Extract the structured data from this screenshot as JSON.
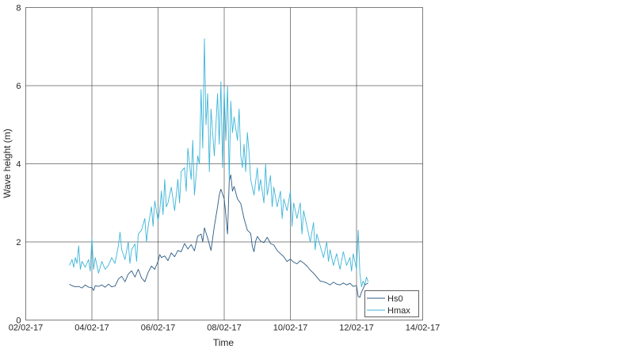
{
  "chart_data": {
    "type": "line",
    "title": "",
    "xlabel": "Time",
    "ylabel": "Wave height (m)",
    "xlim": [
      "02/02-17",
      "14/02-17"
    ],
    "ylim": [
      0,
      8
    ],
    "grid": true,
    "legend_position": "lower right (inside)",
    "x_tick_labels": [
      "02/02-17",
      "04/02-17",
      "06/02-17",
      "08/02-17",
      "10/02-17",
      "12/02-17",
      "14/02-17"
    ],
    "y_tick_labels": [
      "0",
      "2",
      "4",
      "6",
      "8"
    ],
    "x_day_start": 2,
    "x_day_end": 14,
    "series": [
      {
        "name": "Hs0",
        "color": "#2b5b84",
        "points": [
          [
            3.32,
            0.92
          ],
          [
            3.4,
            0.88
          ],
          [
            3.5,
            0.85
          ],
          [
            3.6,
            0.86
          ],
          [
            3.7,
            0.82
          ],
          [
            3.8,
            0.9
          ],
          [
            3.9,
            0.84
          ],
          [
            4.0,
            0.83
          ],
          [
            4.05,
            0.76
          ],
          [
            4.1,
            0.88
          ],
          [
            4.2,
            0.86
          ],
          [
            4.3,
            0.9
          ],
          [
            4.4,
            0.84
          ],
          [
            4.5,
            0.92
          ],
          [
            4.6,
            0.85
          ],
          [
            4.7,
            0.87
          ],
          [
            4.8,
            1.05
          ],
          [
            4.9,
            1.12
          ],
          [
            5.0,
            0.98
          ],
          [
            5.1,
            1.18
          ],
          [
            5.2,
            1.26
          ],
          [
            5.3,
            1.1
          ],
          [
            5.4,
            1.3
          ],
          [
            5.5,
            1.08
          ],
          [
            5.6,
            0.98
          ],
          [
            5.7,
            1.22
          ],
          [
            5.8,
            1.38
          ],
          [
            5.9,
            1.3
          ],
          [
            6.0,
            1.5
          ],
          [
            6.05,
            1.68
          ],
          [
            6.1,
            1.6
          ],
          [
            6.2,
            1.64
          ],
          [
            6.3,
            1.52
          ],
          [
            6.4,
            1.72
          ],
          [
            6.5,
            1.62
          ],
          [
            6.6,
            1.78
          ],
          [
            6.7,
            1.75
          ],
          [
            6.8,
            1.96
          ],
          [
            6.9,
            1.82
          ],
          [
            7.0,
            1.93
          ],
          [
            7.1,
            1.77
          ],
          [
            7.2,
            2.15
          ],
          [
            7.3,
            2.2
          ],
          [
            7.35,
            2.0
          ],
          [
            7.4,
            2.36
          ],
          [
            7.5,
            2.1
          ],
          [
            7.6,
            1.78
          ],
          [
            7.7,
            2.4
          ],
          [
            7.8,
            2.9
          ],
          [
            7.85,
            3.2
          ],
          [
            7.9,
            3.35
          ],
          [
            8.0,
            3.1
          ],
          [
            8.05,
            2.68
          ],
          [
            8.1,
            2.2
          ],
          [
            8.15,
            3.56
          ],
          [
            8.2,
            3.72
          ],
          [
            8.25,
            3.3
          ],
          [
            8.3,
            3.42
          ],
          [
            8.4,
            3.1
          ],
          [
            8.5,
            2.98
          ],
          [
            8.6,
            2.6
          ],
          [
            8.7,
            2.3
          ],
          [
            8.8,
            2.22
          ],
          [
            8.85,
            1.88
          ],
          [
            8.9,
            1.75
          ],
          [
            8.95,
            2.02
          ],
          [
            9.0,
            2.14
          ],
          [
            9.1,
            2.02
          ],
          [
            9.2,
            1.98
          ],
          [
            9.3,
            2.12
          ],
          [
            9.4,
            1.96
          ],
          [
            9.5,
            1.92
          ],
          [
            9.6,
            1.78
          ],
          [
            9.7,
            1.7
          ],
          [
            9.8,
            1.62
          ],
          [
            9.9,
            1.5
          ],
          [
            10.0,
            1.56
          ],
          [
            10.1,
            1.48
          ],
          [
            10.2,
            1.44
          ],
          [
            10.3,
            1.52
          ],
          [
            10.4,
            1.46
          ],
          [
            10.5,
            1.38
          ],
          [
            10.6,
            1.28
          ],
          [
            10.7,
            1.2
          ],
          [
            10.8,
            1.1
          ],
          [
            10.9,
            1.0
          ],
          [
            11.0,
            0.98
          ],
          [
            11.1,
            0.95
          ],
          [
            11.2,
            0.9
          ],
          [
            11.3,
            0.97
          ],
          [
            11.4,
            0.92
          ],
          [
            11.5,
            0.9
          ],
          [
            11.6,
            0.95
          ],
          [
            11.7,
            0.9
          ],
          [
            11.8,
            0.94
          ],
          [
            11.9,
            0.86
          ],
          [
            12.0,
            0.88
          ],
          [
            12.05,
            0.6
          ],
          [
            12.1,
            0.58
          ],
          [
            12.15,
            0.72
          ],
          [
            12.2,
            0.8
          ],
          [
            12.25,
            0.9
          ],
          [
            12.35,
            0.95
          ]
        ]
      },
      {
        "name": "Hmax",
        "color": "#3db5d9",
        "points": [
          [
            3.32,
            1.4
          ],
          [
            3.4,
            1.55
          ],
          [
            3.45,
            1.35
          ],
          [
            3.5,
            1.6
          ],
          [
            3.55,
            1.45
          ],
          [
            3.6,
            1.9
          ],
          [
            3.65,
            1.3
          ],
          [
            3.7,
            1.5
          ],
          [
            3.8,
            1.35
          ],
          [
            3.9,
            1.55
          ],
          [
            3.95,
            1.25
          ],
          [
            4.0,
            2.1
          ],
          [
            4.05,
            1.3
          ],
          [
            4.1,
            1.6
          ],
          [
            4.2,
            1.2
          ],
          [
            4.3,
            1.5
          ],
          [
            4.4,
            1.3
          ],
          [
            4.5,
            1.4
          ],
          [
            4.6,
            1.6
          ],
          [
            4.7,
            1.45
          ],
          [
            4.8,
            1.9
          ],
          [
            4.85,
            2.25
          ],
          [
            4.9,
            1.8
          ],
          [
            5.0,
            1.55
          ],
          [
            5.1,
            2.0
          ],
          [
            5.15,
            1.45
          ],
          [
            5.2,
            1.8
          ],
          [
            5.3,
            1.95
          ],
          [
            5.35,
            1.5
          ],
          [
            5.4,
            2.2
          ],
          [
            5.5,
            2.3
          ],
          [
            5.6,
            2.6
          ],
          [
            5.65,
            2.0
          ],
          [
            5.7,
            2.4
          ],
          [
            5.8,
            2.9
          ],
          [
            5.85,
            2.4
          ],
          [
            5.9,
            3.05
          ],
          [
            6.0,
            2.55
          ],
          [
            6.05,
            2.8
          ],
          [
            6.1,
            3.3
          ],
          [
            6.15,
            2.7
          ],
          [
            6.2,
            3.6
          ],
          [
            6.25,
            2.9
          ],
          [
            6.3,
            3.0
          ],
          [
            6.4,
            3.4
          ],
          [
            6.5,
            2.8
          ],
          [
            6.6,
            3.6
          ],
          [
            6.65,
            3.0
          ],
          [
            6.7,
            3.8
          ],
          [
            6.8,
            3.9
          ],
          [
            6.85,
            3.3
          ],
          [
            6.9,
            4.4
          ],
          [
            7.0,
            3.6
          ],
          [
            7.05,
            4.6
          ],
          [
            7.1,
            3.2
          ],
          [
            7.2,
            4.2
          ],
          [
            7.25,
            4.0
          ],
          [
            7.3,
            5.9
          ],
          [
            7.35,
            4.4
          ],
          [
            7.4,
            7.2
          ],
          [
            7.45,
            5.0
          ],
          [
            7.5,
            5.8
          ],
          [
            7.55,
            3.8
          ],
          [
            7.6,
            5.4
          ],
          [
            7.7,
            4.2
          ],
          [
            7.8,
            5.8
          ],
          [
            7.85,
            4.5
          ],
          [
            7.9,
            6.1
          ],
          [
            7.95,
            3.9
          ],
          [
            8.0,
            5.9
          ],
          [
            8.05,
            4.6
          ],
          [
            8.1,
            6.0
          ],
          [
            8.15,
            3.6
          ],
          [
            8.2,
            5.6
          ],
          [
            8.25,
            4.8
          ],
          [
            8.3,
            5.2
          ],
          [
            8.4,
            4.6
          ],
          [
            8.45,
            5.4
          ],
          [
            8.5,
            4.2
          ],
          [
            8.55,
            3.9
          ],
          [
            8.6,
            4.5
          ],
          [
            8.65,
            3.8
          ],
          [
            8.7,
            4.8
          ],
          [
            8.75,
            4.3
          ],
          [
            8.8,
            3.6
          ],
          [
            8.9,
            3.2
          ],
          [
            9.0,
            3.9
          ],
          [
            9.05,
            3.3
          ],
          [
            9.1,
            3.6
          ],
          [
            9.2,
            3.0
          ],
          [
            9.25,
            4.0
          ],
          [
            9.3,
            3.2
          ],
          [
            9.4,
            3.7
          ],
          [
            9.45,
            2.9
          ],
          [
            9.5,
            3.4
          ],
          [
            9.6,
            2.9
          ],
          [
            9.7,
            3.3
          ],
          [
            9.75,
            2.6
          ],
          [
            9.8,
            3.1
          ],
          [
            9.9,
            2.8
          ],
          [
            10.0,
            3.3
          ],
          [
            10.05,
            2.4
          ],
          [
            10.1,
            3.0
          ],
          [
            10.2,
            2.6
          ],
          [
            10.3,
            3.0
          ],
          [
            10.35,
            2.2
          ],
          [
            10.4,
            2.8
          ],
          [
            10.5,
            2.4
          ],
          [
            10.6,
            2.0
          ],
          [
            10.7,
            2.5
          ],
          [
            10.75,
            1.8
          ],
          [
            10.8,
            2.2
          ],
          [
            10.9,
            1.9
          ],
          [
            11.0,
            1.6
          ],
          [
            11.1,
            2.0
          ],
          [
            11.15,
            1.5
          ],
          [
            11.2,
            1.8
          ],
          [
            11.3,
            1.4
          ],
          [
            11.4,
            1.7
          ],
          [
            11.5,
            1.3
          ],
          [
            11.6,
            1.75
          ],
          [
            11.7,
            1.4
          ],
          [
            11.8,
            1.6
          ],
          [
            11.85,
            1.25
          ],
          [
            11.9,
            1.7
          ],
          [
            12.0,
            1.3
          ],
          [
            12.05,
            2.3
          ],
          [
            12.1,
            1.2
          ],
          [
            12.15,
            0.85
          ],
          [
            12.2,
            1.0
          ],
          [
            12.25,
            0.9
          ],
          [
            12.3,
            1.1
          ],
          [
            12.35,
            0.98
          ]
        ]
      }
    ]
  },
  "legend": {
    "items": [
      {
        "label": "Hs0",
        "color": "#2b5b84"
      },
      {
        "label": "Hmax",
        "color": "#3db5d9"
      }
    ]
  }
}
